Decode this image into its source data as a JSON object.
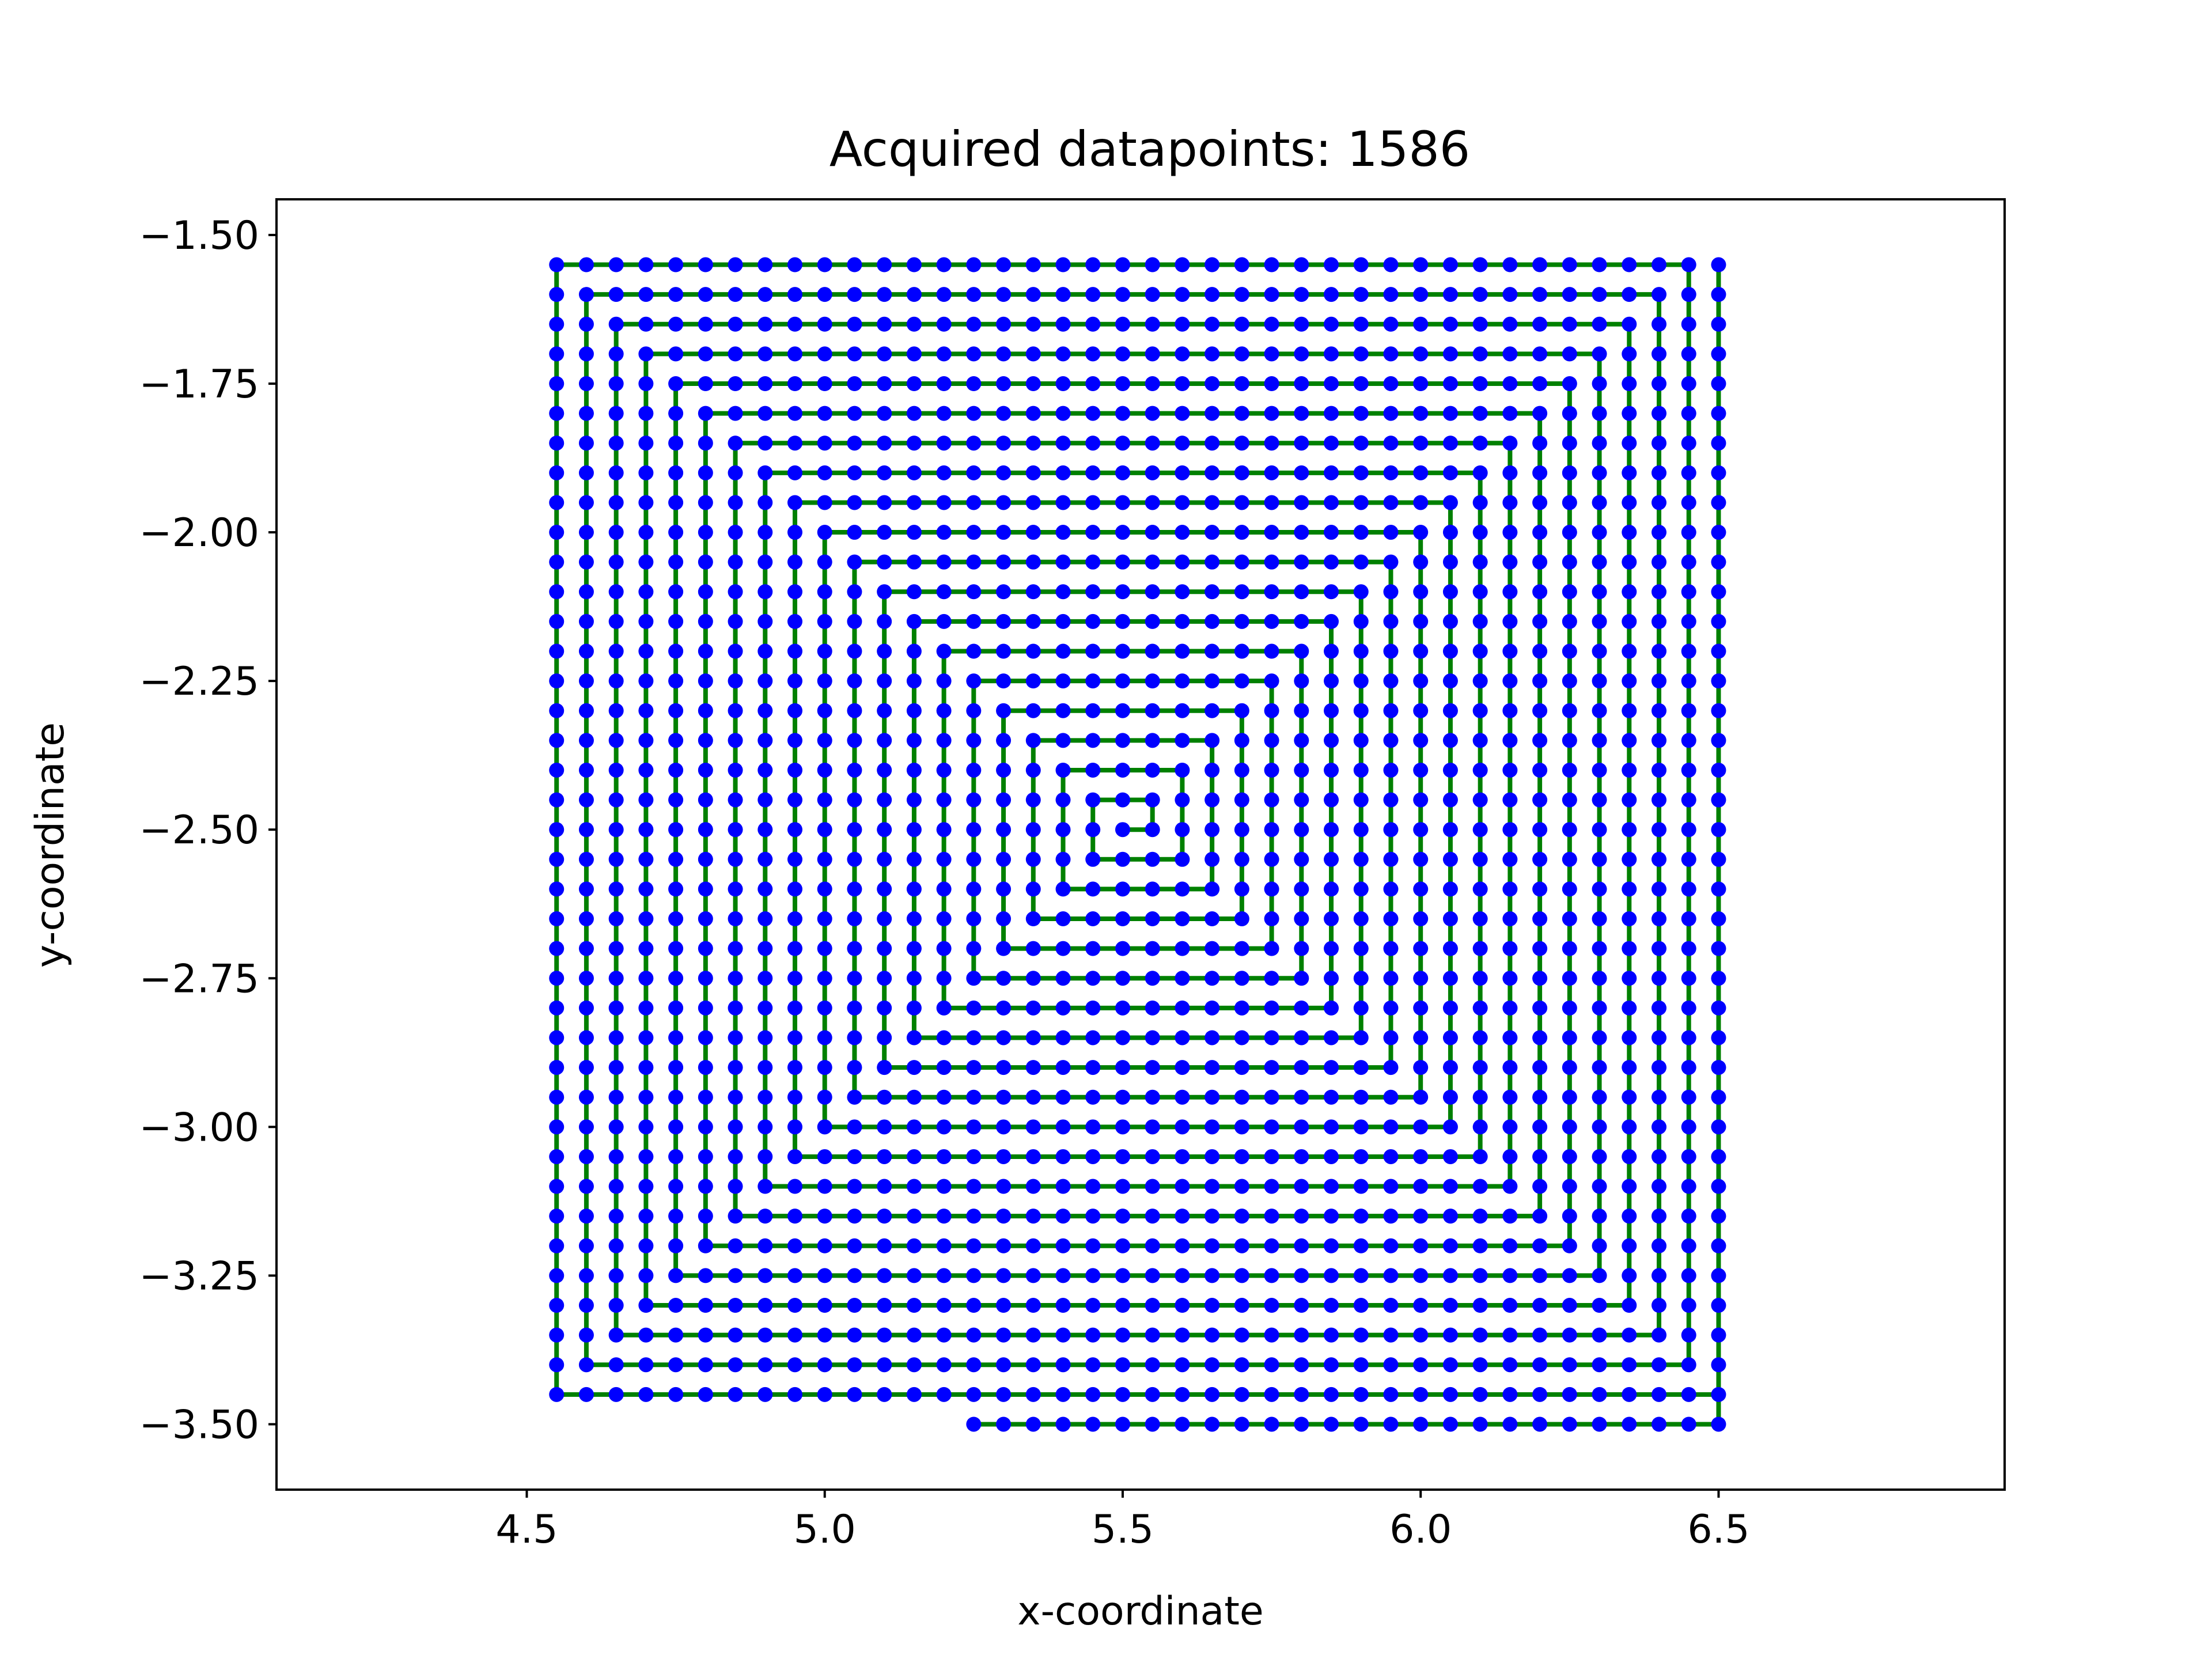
{
  "chart_data": {
    "type": "scatter",
    "title": "Acquired datapoints: 1586",
    "xlabel": "x-coordinate",
    "ylabel": "y-coordinate",
    "xlim": [
      4.08,
      6.98
    ],
    "ylim": [
      -3.61,
      -1.44
    ],
    "xticks": [
      4.5,
      5.0,
      5.5,
      6.0,
      6.5
    ],
    "xtick_labels": [
      "4.5",
      "5.0",
      "5.5",
      "6.0",
      "6.5"
    ],
    "yticks": [
      -1.5,
      -1.75,
      -2.0,
      -2.25,
      -2.5,
      -2.75,
      -3.0,
      -3.25,
      -3.5
    ],
    "ytick_labels": [
      "−1.50",
      "−1.75",
      "−2.00",
      "−2.25",
      "−2.50",
      "−2.75",
      "−3.00",
      "−3.25",
      "−3.50"
    ],
    "grid": false,
    "legend": "none",
    "series": [
      {
        "kind": "path",
        "color": "#008000",
        "pattern": "square spiral",
        "center": [
          5.5,
          -2.5
        ],
        "step": 0.05,
        "points": [
          [
            5.5,
            -2.5
          ],
          [
            5.55,
            -2.5
          ],
          [
            5.55,
            -2.45
          ],
          [
            5.45,
            -2.45
          ],
          [
            5.45,
            -2.55
          ],
          [
            5.6,
            -2.55
          ],
          [
            5.6,
            -2.4
          ],
          [
            5.4,
            -2.4
          ],
          [
            5.4,
            -2.6
          ],
          [
            5.65,
            -2.6
          ],
          [
            5.65,
            -2.35
          ],
          [
            5.35,
            -2.35
          ],
          [
            5.35,
            -2.65
          ],
          [
            5.7,
            -2.65
          ],
          [
            5.7,
            -2.3
          ],
          [
            5.3,
            -2.3
          ],
          [
            5.3,
            -2.7
          ],
          [
            5.75,
            -2.7
          ],
          [
            5.75,
            -2.25
          ],
          [
            5.25,
            -2.25
          ],
          [
            5.25,
            -2.75
          ],
          [
            5.8,
            -2.75
          ],
          [
            5.8,
            -2.2
          ],
          [
            5.2,
            -2.2
          ],
          [
            5.2,
            -2.8
          ],
          [
            5.85,
            -2.8
          ],
          [
            5.85,
            -2.15
          ],
          [
            5.15,
            -2.15
          ],
          [
            5.15,
            -2.85
          ],
          [
            5.9,
            -2.85
          ],
          [
            5.9,
            -2.1
          ],
          [
            5.1,
            -2.1
          ],
          [
            5.1,
            -2.9
          ],
          [
            5.95,
            -2.9
          ],
          [
            5.95,
            -2.05
          ],
          [
            5.05,
            -2.05
          ],
          [
            5.05,
            -2.95
          ],
          [
            6.0,
            -2.95
          ],
          [
            6.0,
            -2.0
          ],
          [
            5.0,
            -2.0
          ],
          [
            5.0,
            -3.0
          ],
          [
            6.05,
            -3.0
          ],
          [
            6.05,
            -1.95
          ],
          [
            4.95,
            -1.95
          ],
          [
            4.95,
            -3.05
          ],
          [
            6.1,
            -3.05
          ],
          [
            6.1,
            -1.9
          ],
          [
            4.9,
            -1.9
          ],
          [
            4.9,
            -3.1
          ],
          [
            6.15,
            -3.1
          ],
          [
            6.15,
            -1.85
          ],
          [
            4.85,
            -1.85
          ],
          [
            4.85,
            -3.15
          ],
          [
            6.2,
            -3.15
          ],
          [
            6.2,
            -1.8
          ],
          [
            4.8,
            -1.8
          ],
          [
            4.8,
            -3.2
          ],
          [
            6.25,
            -3.2
          ],
          [
            6.25,
            -1.75
          ],
          [
            4.75,
            -1.75
          ],
          [
            4.75,
            -3.25
          ],
          [
            6.3,
            -3.25
          ],
          [
            6.3,
            -1.7
          ],
          [
            4.7,
            -1.7
          ],
          [
            4.7,
            -3.3
          ],
          [
            6.35,
            -3.3
          ],
          [
            6.35,
            -1.65
          ],
          [
            4.65,
            -1.65
          ],
          [
            4.65,
            -3.35
          ],
          [
            6.4,
            -3.35
          ],
          [
            6.4,
            -1.6
          ],
          [
            4.6,
            -1.6
          ],
          [
            4.6,
            -3.4
          ],
          [
            6.45,
            -3.4
          ],
          [
            6.45,
            -1.55
          ],
          [
            4.55,
            -1.55
          ],
          [
            4.55,
            -3.45
          ],
          [
            6.5,
            -3.45
          ],
          [
            6.5,
            -1.55
          ],
          [
            6.5,
            -3.5
          ],
          [
            5.25,
            -3.5
          ]
        ]
      },
      {
        "kind": "scatter",
        "color": "#0000ff",
        "name": "datapoints",
        "pattern": "samples every 0.05 along the path",
        "count": 1586
      }
    ]
  }
}
